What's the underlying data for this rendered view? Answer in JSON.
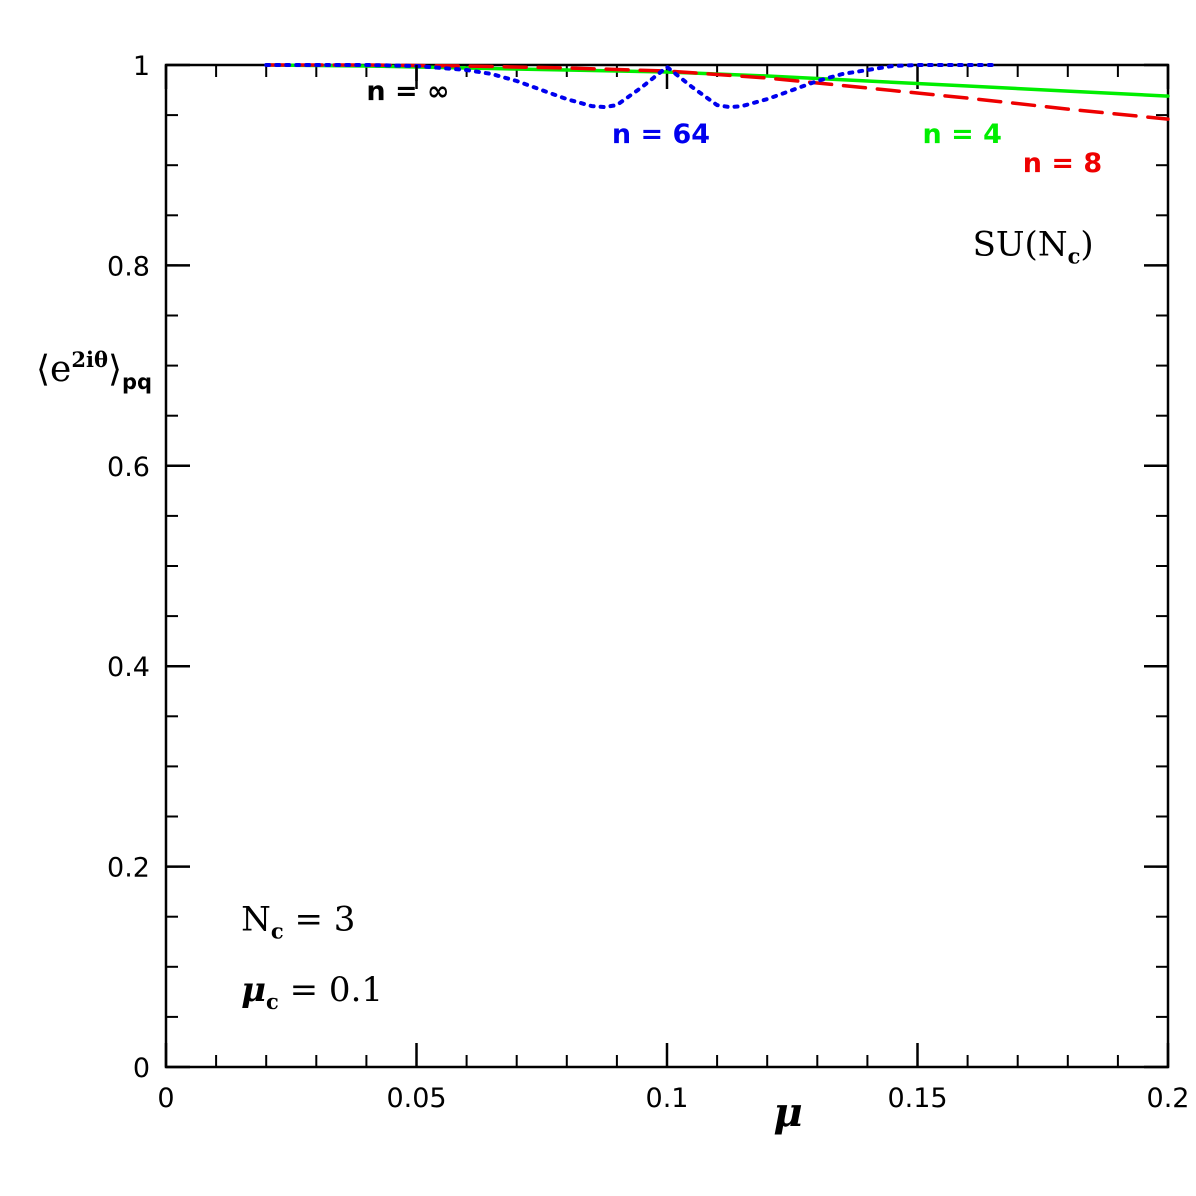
{
  "chart_data": {
    "type": "line",
    "xlabel": "μ",
    "ylabel": {
      "base": "⟨e",
      "sup": "2iθ",
      "close": "⟩",
      "sub": "pq"
    },
    "xlim": [
      0,
      0.2
    ],
    "ylim": [
      0,
      1
    ],
    "x_ticks": [
      {
        "value": 0,
        "label": "0"
      },
      {
        "value": 0.05,
        "label": "0.05"
      },
      {
        "value": 0.1,
        "label": "0.1"
      },
      {
        "value": 0.15,
        "label": "0.15"
      },
      {
        "value": 0.2,
        "label": "0.2"
      }
    ],
    "y_ticks": [
      {
        "value": 0,
        "label": "0"
      },
      {
        "value": 0.2,
        "label": "0.2"
      },
      {
        "value": 0.4,
        "label": "0.4"
      },
      {
        "value": 0.6,
        "label": "0.6"
      },
      {
        "value": 0.8,
        "label": "0.8"
      },
      {
        "value": 1,
        "label": "1"
      }
    ],
    "x_minor_step": 0.01,
    "y_minor_step": 0.05,
    "series": [
      {
        "name": "n = 4",
        "color": "#00ee00",
        "style": "solid",
        "x": [
          0.02,
          0.04,
          0.06,
          0.08,
          0.1,
          0.12,
          0.14,
          0.16,
          0.18,
          0.2
        ],
        "y": [
          1.0,
          0.999,
          0.997,
          0.995,
          0.993,
          0.989,
          0.984,
          0.979,
          0.974,
          0.969
        ]
      },
      {
        "name": "n = 8",
        "color": "#ee0000",
        "style": "dashed",
        "x": [
          0.02,
          0.04,
          0.06,
          0.08,
          0.1,
          0.12,
          0.14,
          0.16,
          0.18,
          0.2
        ],
        "y": [
          1.0,
          1.0,
          0.999,
          0.997,
          0.994,
          0.987,
          0.977,
          0.967,
          0.956,
          0.946
        ]
      },
      {
        "name": "n = 64",
        "color": "#0000ee",
        "style": "dotted",
        "x": [
          0.02,
          0.04,
          0.05,
          0.06,
          0.065,
          0.07,
          0.075,
          0.08,
          0.085,
          0.0875,
          0.09,
          0.095,
          0.1,
          0.105,
          0.11,
          0.1125,
          0.115,
          0.12,
          0.125,
          0.13,
          0.135,
          0.14,
          0.145,
          0.15,
          0.16,
          0.165
        ],
        "y": [
          1.0,
          1.0,
          0.999,
          0.995,
          0.991,
          0.984,
          0.975,
          0.966,
          0.959,
          0.958,
          0.96,
          0.978,
          0.998,
          0.978,
          0.96,
          0.958,
          0.959,
          0.966,
          0.975,
          0.984,
          0.991,
          0.995,
          0.999,
          1.0,
          1.0,
          1.0
        ]
      }
    ],
    "annotations": {
      "n_inf": {
        "text": "n  =  ∞",
        "color": "#000000",
        "x": 0.04,
        "y": 0.965
      },
      "n_inf_marker": {
        "x": 0.05,
        "y1": 1.0,
        "y2": 0.984
      },
      "n64": {
        "text": "n  =  64",
        "color": "#0000ee",
        "x": 0.089,
        "y": 0.922
      },
      "n4": {
        "text": "n  =  4",
        "color": "#00ee00",
        "x": 0.151,
        "y": 0.922
      },
      "n8": {
        "text": "n  =  8",
        "color": "#ee0000",
        "x": 0.171,
        "y": 0.893
      },
      "group": {
        "base": "SU(N",
        "sub": "c",
        "close": ")",
        "x": 0.161,
        "y": 0.81
      },
      "nc": {
        "base": "N",
        "sub": "c",
        "rest": "  =  3",
        "x": 0.015,
        "y": 0.136
      },
      "muc": {
        "base": "μ",
        "sub": "c",
        "rest": "  =  0.1",
        "x": 0.015,
        "y": 0.066
      }
    }
  }
}
